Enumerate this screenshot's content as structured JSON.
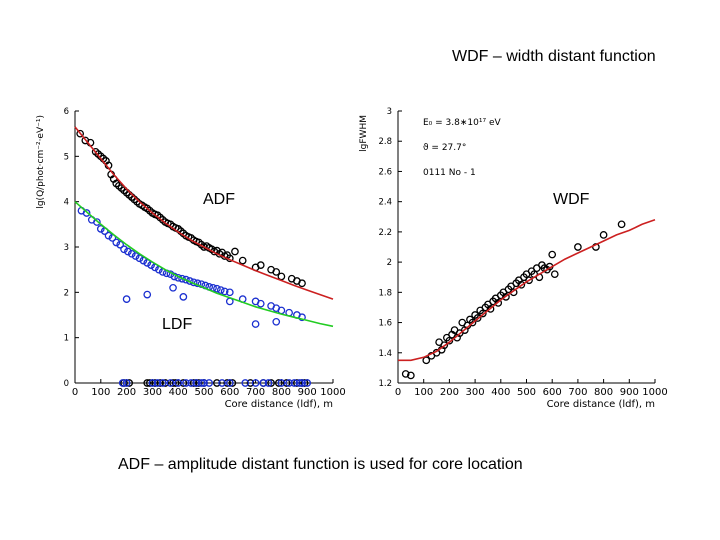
{
  "slide": {
    "title": "WDF – width distant function",
    "caption": "ADF – amplitude distant function is used for core location",
    "labels": {
      "adf": "ADF",
      "wdf": "WDF",
      "ldf": "LDF"
    }
  },
  "colors": {
    "red": "#cc2020",
    "green": "#22cc22",
    "blue": "#1a2fd0",
    "black": "#000000",
    "cyan": "#27b6c8"
  },
  "chart_data": [
    {
      "type": "scatter",
      "name": "ADF / LDF",
      "title": "",
      "xlabel": "Core distance (ldf), m",
      "ylabel": "lg(Q/phot·cm⁻²·eV⁻¹)",
      "xlim": [
        0,
        1000
      ],
      "ylim": [
        0,
        6
      ],
      "xticks": [
        0,
        100,
        200,
        300,
        400,
        500,
        600,
        700,
        800,
        900,
        1000
      ],
      "yticks": [
        0,
        1,
        2,
        3,
        4,
        5,
        6
      ],
      "series": [
        {
          "name": "ADF points",
          "color": "#000000",
          "marker": "open-circle",
          "x": [
            20,
            40,
            60,
            80,
            90,
            100,
            110,
            120,
            130,
            140,
            150,
            160,
            170,
            180,
            190,
            200,
            210,
            220,
            230,
            240,
            250,
            260,
            270,
            280,
            290,
            300,
            310,
            320,
            330,
            340,
            350,
            360,
            370,
            380,
            390,
            400,
            410,
            420,
            430,
            440,
            450,
            460,
            470,
            480,
            490,
            500,
            510,
            520,
            530,
            540,
            550,
            560,
            570,
            580,
            590,
            600,
            620,
            650,
            700,
            720,
            760,
            780,
            800,
            840,
            860,
            880
          ],
          "y": [
            5.5,
            5.35,
            5.3,
            5.1,
            5.05,
            5.0,
            4.95,
            4.9,
            4.8,
            4.6,
            4.5,
            4.4,
            4.35,
            4.3,
            4.25,
            4.2,
            4.15,
            4.1,
            4.05,
            4.0,
            3.95,
            3.92,
            3.88,
            3.85,
            3.8,
            3.75,
            3.72,
            3.7,
            3.65,
            3.6,
            3.55,
            3.52,
            3.5,
            3.45,
            3.42,
            3.4,
            3.35,
            3.3,
            3.25,
            3.22,
            3.2,
            3.15,
            3.12,
            3.1,
            3.05,
            3.0,
            3.02,
            2.98,
            2.95,
            2.9,
            2.92,
            2.85,
            2.88,
            2.8,
            2.82,
            2.75,
            2.9,
            2.7,
            2.55,
            2.6,
            2.5,
            2.45,
            2.35,
            2.3,
            2.25,
            2.2
          ]
        },
        {
          "name": "LDF points",
          "color": "#1a2fd0",
          "marker": "open-circle",
          "x": [
            25,
            45,
            65,
            85,
            100,
            115,
            130,
            145,
            160,
            175,
            190,
            205,
            220,
            235,
            250,
            265,
            280,
            295,
            310,
            325,
            340,
            355,
            370,
            385,
            400,
            415,
            430,
            445,
            460,
            475,
            490,
            505,
            520,
            535,
            550,
            565,
            580,
            600,
            650,
            700,
            720,
            760,
            780,
            800,
            830,
            860,
            880,
            200,
            280,
            380,
            420,
            600,
            700,
            780
          ],
          "y": [
            3.8,
            3.75,
            3.6,
            3.55,
            3.4,
            3.35,
            3.25,
            3.2,
            3.1,
            3.05,
            2.95,
            2.9,
            2.85,
            2.8,
            2.75,
            2.7,
            2.65,
            2.6,
            2.55,
            2.5,
            2.45,
            2.42,
            2.4,
            2.35,
            2.32,
            2.3,
            2.28,
            2.25,
            2.22,
            2.2,
            2.18,
            2.15,
            2.12,
            2.1,
            2.08,
            2.05,
            2.02,
            2.0,
            1.85,
            1.8,
            1.75,
            1.7,
            1.65,
            1.6,
            1.55,
            1.5,
            1.45,
            1.85,
            1.95,
            2.1,
            1.9,
            1.8,
            1.3,
            1.35
          ]
        },
        {
          "name": "ADF points (zero)",
          "color": "#000000",
          "marker": "open-circle",
          "x": [
            190,
            210,
            280,
            290,
            310,
            330,
            350,
            380,
            390,
            420,
            460,
            470,
            480,
            500,
            550,
            590,
            610,
            680,
            730,
            760,
            790,
            820,
            860,
            880,
            890
          ],
          "y": [
            0,
            0,
            0,
            0,
            0,
            0,
            0,
            0,
            0,
            0,
            0,
            0,
            0,
            0,
            0,
            0,
            0,
            0,
            0,
            0,
            0,
            0,
            0,
            0,
            0
          ]
        },
        {
          "name": "LDF points (zero)",
          "color": "#1a2fd0",
          "marker": "open-circle",
          "x": [
            185,
            200,
            300,
            320,
            340,
            370,
            400,
            430,
            450,
            470,
            490,
            500,
            520,
            570,
            600,
            660,
            700,
            730,
            750,
            800,
            830,
            850,
            870,
            880,
            900
          ],
          "y": [
            0,
            0,
            0,
            0,
            0,
            0,
            0,
            0,
            0,
            0,
            0,
            0,
            0,
            0,
            0,
            0,
            0,
            0,
            0,
            0,
            0,
            0,
            0,
            0,
            0
          ]
        },
        {
          "name": "ADF fit",
          "color": "#cc2020",
          "marker": "line",
          "x": [
            0,
            50,
            100,
            150,
            200,
            250,
            300,
            350,
            400,
            450,
            500,
            550,
            600,
            650,
            700,
            750,
            800,
            850,
            900,
            950,
            1000
          ],
          "y": [
            5.65,
            5.3,
            4.95,
            4.6,
            4.28,
            4.0,
            3.75,
            3.53,
            3.33,
            3.15,
            3.0,
            2.85,
            2.72,
            2.6,
            2.48,
            2.37,
            2.26,
            2.15,
            2.05,
            1.95,
            1.85
          ]
        },
        {
          "name": "LDF fit",
          "color": "#22cc22",
          "marker": "line",
          "x": [
            0,
            50,
            100,
            150,
            200,
            250,
            300,
            350,
            400,
            450,
            500,
            550,
            600,
            650,
            700,
            750,
            800,
            850,
            900,
            950,
            1000
          ],
          "y": [
            4.0,
            3.75,
            3.5,
            3.27,
            3.05,
            2.85,
            2.67,
            2.5,
            2.35,
            2.22,
            2.1,
            1.98,
            1.88,
            1.78,
            1.68,
            1.6,
            1.52,
            1.45,
            1.38,
            1.31,
            1.25
          ]
        }
      ]
    },
    {
      "type": "scatter",
      "name": "WDF",
      "title": "",
      "xlabel": "Core distance (ldf), m",
      "ylabel": "lgFWHM",
      "xlim": [
        0,
        1000
      ],
      "ylim": [
        1.2,
        3.0
      ],
      "xticks": [
        0,
        100,
        200,
        300,
        400,
        500,
        600,
        700,
        800,
        900,
        1000
      ],
      "yticks": [
        1.2,
        1.4,
        1.6,
        1.8,
        2.0,
        2.2,
        2.4,
        2.6,
        2.8,
        3.0
      ],
      "ytick_labels": [
        "1.2",
        "1.4",
        "1.6",
        "1.8",
        "2",
        "2.2",
        "2.4",
        "2.6",
        "2.8",
        "3"
      ],
      "annotations": [
        "E₀ = 3.8∗10¹⁷ eV",
        "ϑ = 27.7°",
        "0111 No - 1"
      ],
      "series": [
        {
          "name": "WDF points",
          "color": "#000000",
          "marker": "open-circle",
          "x": [
            30,
            50,
            110,
            130,
            150,
            160,
            170,
            180,
            190,
            200,
            210,
            220,
            230,
            240,
            250,
            260,
            270,
            280,
            290,
            300,
            310,
            320,
            330,
            340,
            350,
            360,
            370,
            380,
            390,
            400,
            410,
            420,
            430,
            440,
            450,
            460,
            470,
            480,
            490,
            500,
            510,
            520,
            530,
            540,
            550,
            560,
            570,
            580,
            590,
            600,
            610,
            700,
            770,
            800,
            870
          ],
          "y": [
            1.26,
            1.25,
            1.35,
            1.38,
            1.4,
            1.47,
            1.42,
            1.45,
            1.5,
            1.48,
            1.52,
            1.55,
            1.5,
            1.53,
            1.6,
            1.55,
            1.58,
            1.62,
            1.6,
            1.65,
            1.63,
            1.68,
            1.66,
            1.7,
            1.72,
            1.69,
            1.74,
            1.76,
            1.73,
            1.78,
            1.8,
            1.77,
            1.82,
            1.84,
            1.8,
            1.86,
            1.88,
            1.85,
            1.9,
            1.92,
            1.88,
            1.94,
            1.92,
            1.96,
            1.9,
            1.98,
            1.96,
            1.95,
            1.97,
            2.05,
            1.92,
            2.1,
            2.1,
            2.18,
            2.25
          ]
        },
        {
          "name": "WDF fit",
          "color": "#cc2020",
          "marker": "line",
          "x": [
            0,
            50,
            100,
            150,
            200,
            250,
            300,
            350,
            400,
            450,
            500,
            550,
            600,
            650,
            700,
            750,
            800,
            850,
            900,
            950,
            1000
          ],
          "y": [
            1.35,
            1.35,
            1.37,
            1.41,
            1.47,
            1.54,
            1.61,
            1.68,
            1.75,
            1.81,
            1.87,
            1.92,
            1.97,
            2.02,
            2.06,
            2.1,
            2.14,
            2.18,
            2.21,
            2.25,
            2.28
          ]
        }
      ]
    }
  ]
}
